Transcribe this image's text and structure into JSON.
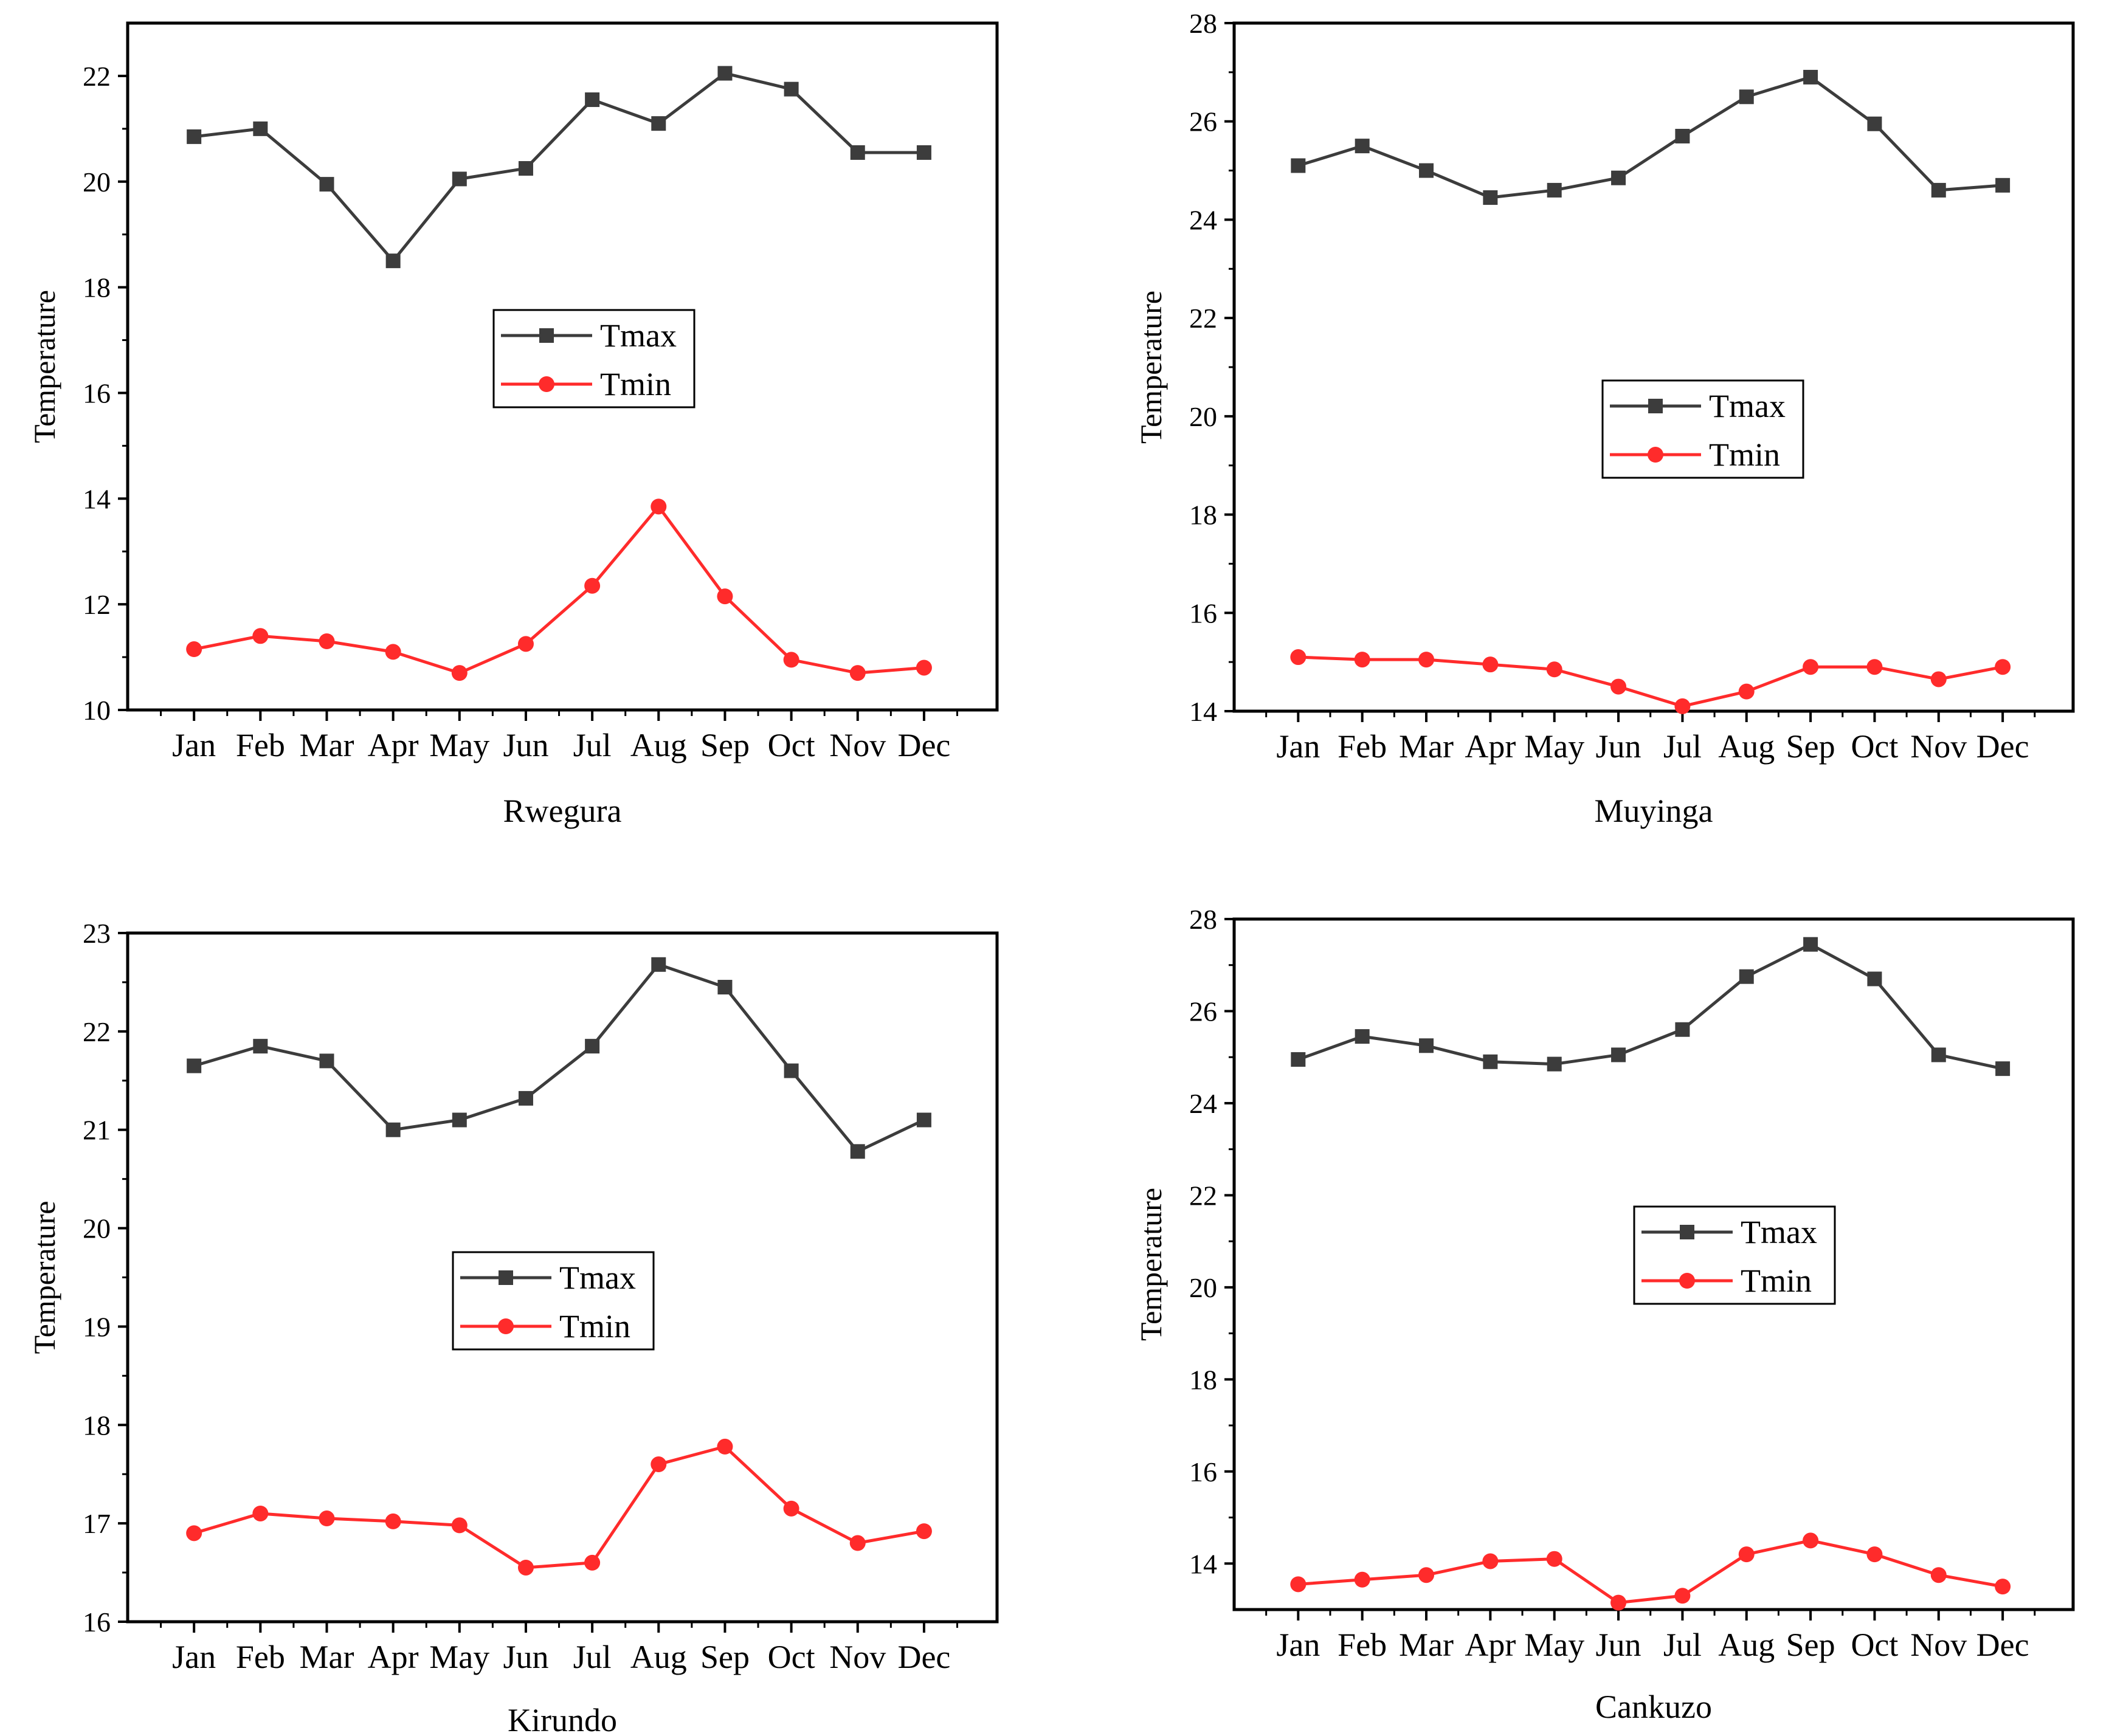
{
  "colors": {
    "tmax": "#3c3c3c",
    "tmin": "#ff2b2b",
    "axis": "#000000"
  },
  "chart_data": [
    {
      "type": "line",
      "title": "",
      "xlabel": "Rwegura",
      "ylabel": "Temperature",
      "categories": [
        "Jan",
        "Feb",
        "Mar",
        "Apr",
        "May",
        "Jun",
        "Jul",
        "Aug",
        "Sep",
        "Oct",
        "Nov",
        "Dec"
      ],
      "ylim": [
        10,
        23
      ],
      "yticks": [
        10,
        12,
        14,
        16,
        18,
        20,
        22
      ],
      "legend_position": "center",
      "series": [
        {
          "name": "Tmax",
          "color": "#3c3c3c",
          "marker": "square",
          "values": [
            20.85,
            21.0,
            19.95,
            18.5,
            20.05,
            20.25,
            21.55,
            21.1,
            22.05,
            21.75,
            20.55,
            20.55
          ]
        },
        {
          "name": "Tmin",
          "color": "#ff2b2b",
          "marker": "circle",
          "values": [
            11.15,
            11.4,
            11.3,
            11.1,
            10.7,
            11.25,
            12.35,
            13.85,
            12.15,
            10.95,
            10.7,
            10.8
          ]
        }
      ]
    },
    {
      "type": "line",
      "title": "",
      "xlabel": "Muyinga",
      "ylabel": "Temperature",
      "categories": [
        "Jan",
        "Feb",
        "Mar",
        "Apr",
        "May",
        "Jun",
        "Jul",
        "Aug",
        "Sep",
        "Oct",
        "Nov",
        "Dec"
      ],
      "ylim": [
        14,
        28
      ],
      "yticks": [
        14,
        16,
        18,
        20,
        22,
        24,
        26,
        28
      ],
      "legend_position": "center-right",
      "series": [
        {
          "name": "Tmax",
          "color": "#3c3c3c",
          "marker": "square",
          "values": [
            25.1,
            25.5,
            25.0,
            24.45,
            24.6,
            24.85,
            25.7,
            26.5,
            26.9,
            25.95,
            24.6,
            24.7
          ]
        },
        {
          "name": "Tmin",
          "color": "#ff2b2b",
          "marker": "circle",
          "values": [
            15.1,
            15.05,
            15.05,
            14.95,
            14.85,
            14.5,
            14.1,
            14.4,
            14.9,
            14.9,
            14.65,
            14.9
          ]
        }
      ]
    },
    {
      "type": "line",
      "title": "",
      "xlabel": "Kirundo",
      "ylabel": "Temperature",
      "categories": [
        "Jan",
        "Feb",
        "Mar",
        "Apr",
        "May",
        "Jun",
        "Jul",
        "Aug",
        "Sep",
        "Oct",
        "Nov",
        "Dec"
      ],
      "ylim": [
        16,
        23
      ],
      "yticks": [
        16,
        17,
        18,
        19,
        20,
        21,
        22,
        23
      ],
      "legend_position": "center",
      "series": [
        {
          "name": "Tmax",
          "color": "#3c3c3c",
          "marker": "square",
          "values": [
            21.65,
            21.85,
            21.7,
            21.0,
            21.1,
            21.32,
            21.85,
            22.68,
            22.45,
            21.6,
            20.78,
            21.1
          ]
        },
        {
          "name": "Tmin",
          "color": "#ff2b2b",
          "marker": "circle",
          "values": [
            16.9,
            17.1,
            17.05,
            17.02,
            16.98,
            16.55,
            16.6,
            17.6,
            17.78,
            17.15,
            16.8,
            16.92
          ]
        }
      ]
    },
    {
      "type": "line",
      "title": "",
      "xlabel": "Cankuzo",
      "ylabel": "Temperature",
      "categories": [
        "Jan",
        "Feb",
        "Mar",
        "Apr",
        "May",
        "Jun",
        "Jul",
        "Aug",
        "Sep",
        "Oct",
        "Nov",
        "Dec"
      ],
      "ylim": [
        13,
        28
      ],
      "yticks": [
        14,
        16,
        18,
        20,
        22,
        24,
        26,
        28
      ],
      "legend_position": "center-right",
      "series": [
        {
          "name": "Tmax",
          "color": "#3c3c3c",
          "marker": "square",
          "values": [
            24.95,
            25.45,
            25.25,
            24.9,
            24.85,
            25.05,
            25.6,
            26.75,
            27.45,
            26.7,
            25.05,
            24.75
          ]
        },
        {
          "name": "Tmin",
          "color": "#ff2b2b",
          "marker": "circle",
          "values": [
            13.55,
            13.65,
            13.75,
            14.05,
            14.1,
            13.15,
            13.3,
            14.2,
            14.5,
            14.2,
            13.75,
            13.5
          ]
        }
      ]
    }
  ]
}
